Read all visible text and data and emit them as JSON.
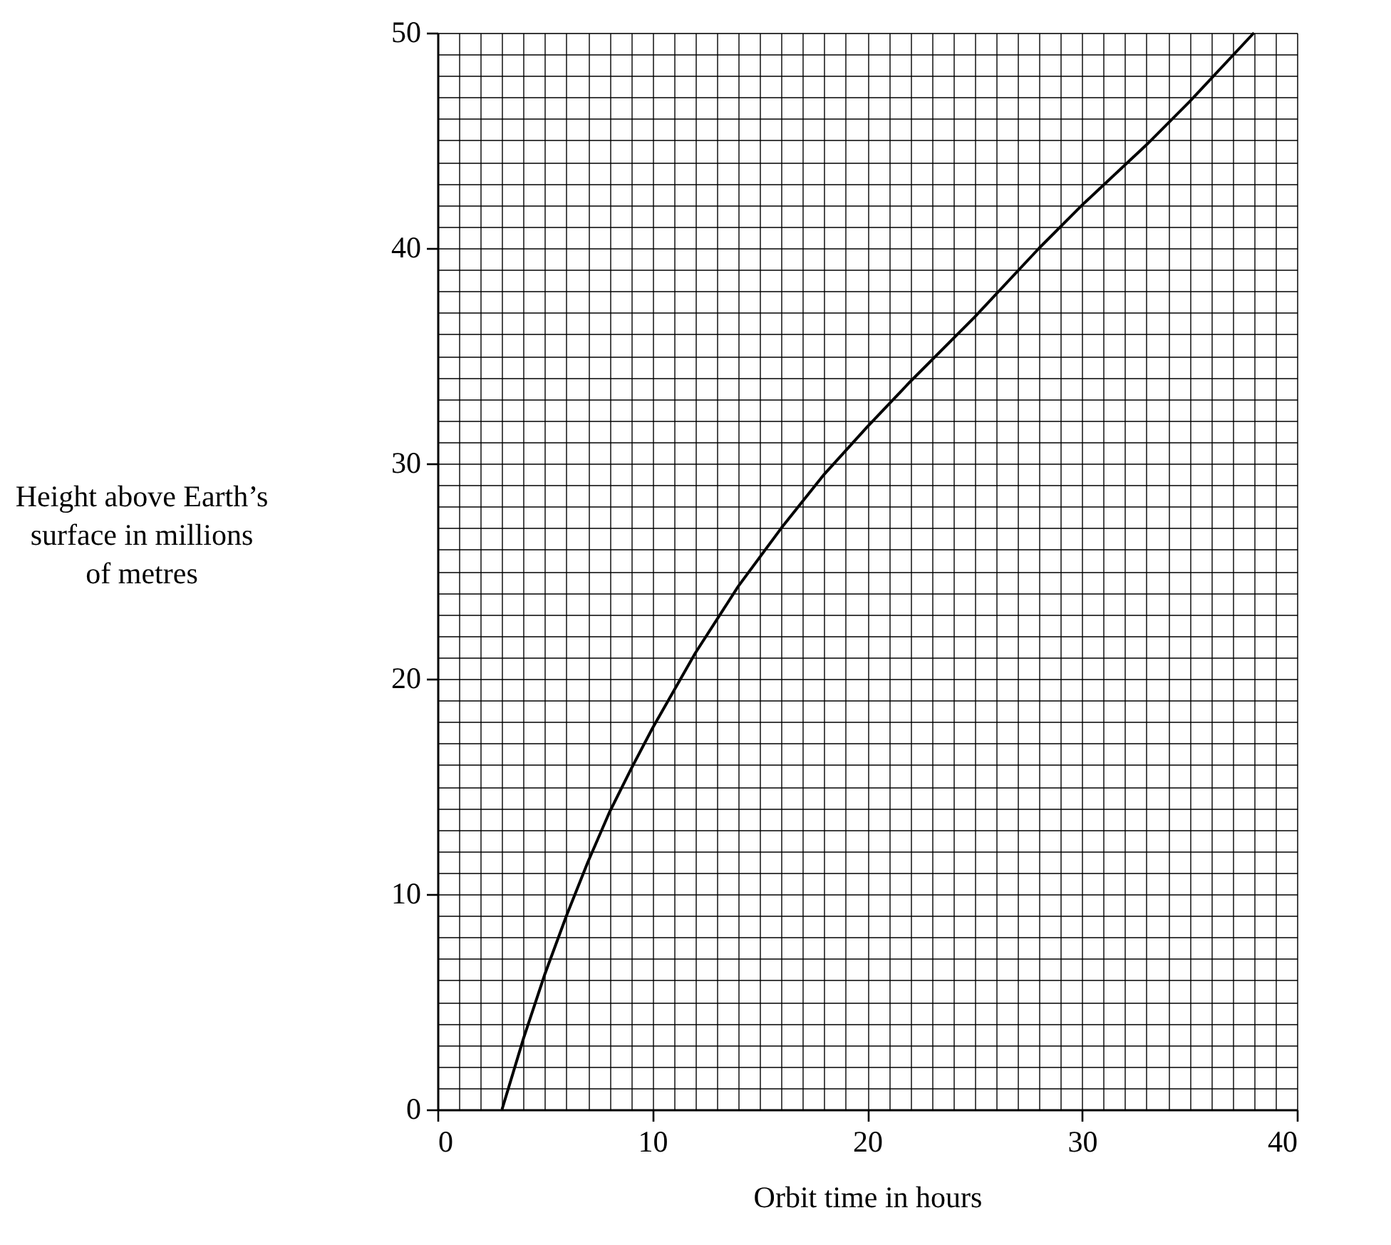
{
  "chart_data": {
    "type": "line",
    "xlabel": "Orbit time in hours",
    "ylabel": "Height above Earth’s\nsurface in millions\nof metres",
    "x": [
      3,
      4,
      5,
      6,
      7,
      8,
      9,
      10,
      12,
      14,
      16,
      18,
      20,
      22,
      25,
      28,
      30,
      33,
      35,
      38
    ],
    "series": [
      {
        "color": "#000000",
        "values": [
          0,
          3.3,
          6.3,
          9,
          11.5,
          13.8,
          15.8,
          17.7,
          21.2,
          24.3,
          27,
          29.5,
          31.7,
          33.8,
          36.8,
          40,
          42,
          44.8,
          46.8,
          50
        ]
      }
    ],
    "xlim": [
      0,
      40
    ],
    "ylim": [
      0,
      50
    ],
    "xticks": [
      0,
      10,
      20,
      30,
      40
    ],
    "yticks": [
      0,
      10,
      20,
      30,
      40,
      50
    ],
    "grid": true,
    "marker": "none",
    "line_style": "solid"
  }
}
